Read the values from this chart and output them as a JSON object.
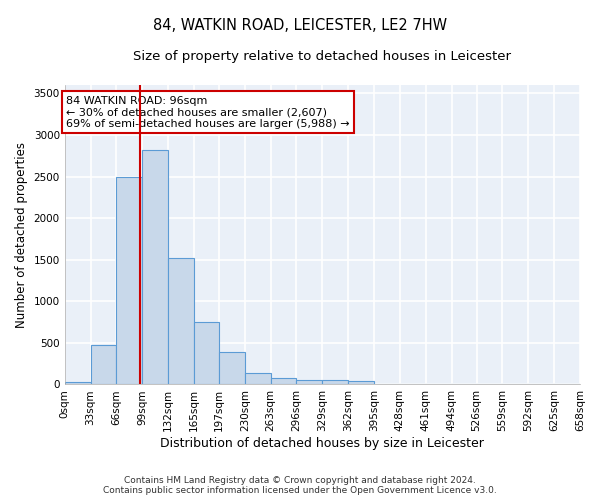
{
  "title": "84, WATKIN ROAD, LEICESTER, LE2 7HW",
  "subtitle": "Size of property relative to detached houses in Leicester",
  "xlabel": "Distribution of detached houses by size in Leicester",
  "ylabel": "Number of detached properties",
  "footer_line1": "Contains HM Land Registry data © Crown copyright and database right 2024.",
  "footer_line2": "Contains public sector information licensed under the Open Government Licence v3.0.",
  "bin_edges": [
    0,
    33,
    66,
    99,
    132,
    165,
    197,
    230,
    263,
    296,
    329,
    362,
    395,
    428,
    461,
    494,
    526,
    559,
    592,
    625,
    658
  ],
  "bar_heights": [
    30,
    480,
    2500,
    2820,
    1520,
    750,
    385,
    140,
    80,
    55,
    55,
    40,
    0,
    0,
    0,
    0,
    0,
    0,
    0,
    0
  ],
  "bar_color": "#c8d8ea",
  "bar_edge_color": "#5b9bd5",
  "vline_x": 96,
  "vline_color": "#cc0000",
  "annotation_line1": "84 WATKIN ROAD: 96sqm",
  "annotation_line2": "← 30% of detached houses are smaller (2,607)",
  "annotation_line3": "69% of semi-detached houses are larger (5,988) →",
  "annotation_box_color": "#cc0000",
  "ylim": [
    0,
    3600
  ],
  "yticks": [
    0,
    500,
    1000,
    1500,
    2000,
    2500,
    3000,
    3500
  ],
  "bg_color": "#eaf0f8",
  "grid_color": "#ffffff",
  "title_fontsize": 10.5,
  "subtitle_fontsize": 9.5,
  "xlabel_fontsize": 9,
  "ylabel_fontsize": 8.5,
  "tick_fontsize": 7.5,
  "annot_fontsize": 8,
  "footer_fontsize": 6.5
}
